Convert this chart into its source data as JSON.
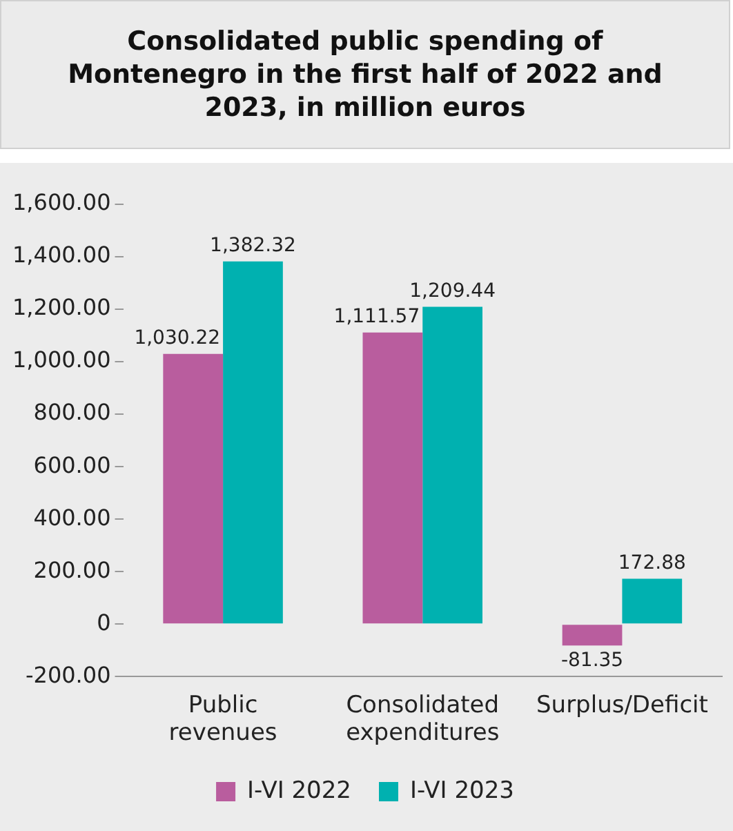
{
  "chart_data": {
    "type": "bar",
    "title": "Consolidated public spending of Montenegro in the first half of 2022 and 2023, in million euros",
    "categories": [
      "Public revenues",
      "Consolidated expenditures",
      "Surplus/Deficit"
    ],
    "series": [
      {
        "name": "I-VI 2022",
        "color": "#b95d9e",
        "values": [
          1030.22,
          1111.57,
          -81.35
        ],
        "value_labels": [
          "1,030.22",
          "1,111.57",
          "-81.35"
        ]
      },
      {
        "name": "I-VI 2023",
        "color": "#00b1b0",
        "values": [
          1382.32,
          1209.44,
          172.88
        ],
        "value_labels": [
          "1,382.32",
          "1,209.44",
          "172.88"
        ]
      }
    ],
    "ylim": [
      -200,
      1600
    ],
    "yticks": [
      {
        "value": -200,
        "label": "-200.00"
      },
      0,
      {
        "value": 200,
        "label": "200.00"
      },
      {
        "value": 400,
        "label": "400.00"
      },
      {
        "value": 600,
        "label": "600.00"
      },
      {
        "value": 800,
        "label": "800.00"
      },
      {
        "value": 1000,
        "label": "1,000.00"
      },
      {
        "value": 1200,
        "label": "1,200.00"
      },
      {
        "value": 1400,
        "label": "1,400.00"
      },
      {
        "value": 1600,
        "label": "1,600.00"
      }
    ],
    "grid": false,
    "legend": "bottom"
  }
}
